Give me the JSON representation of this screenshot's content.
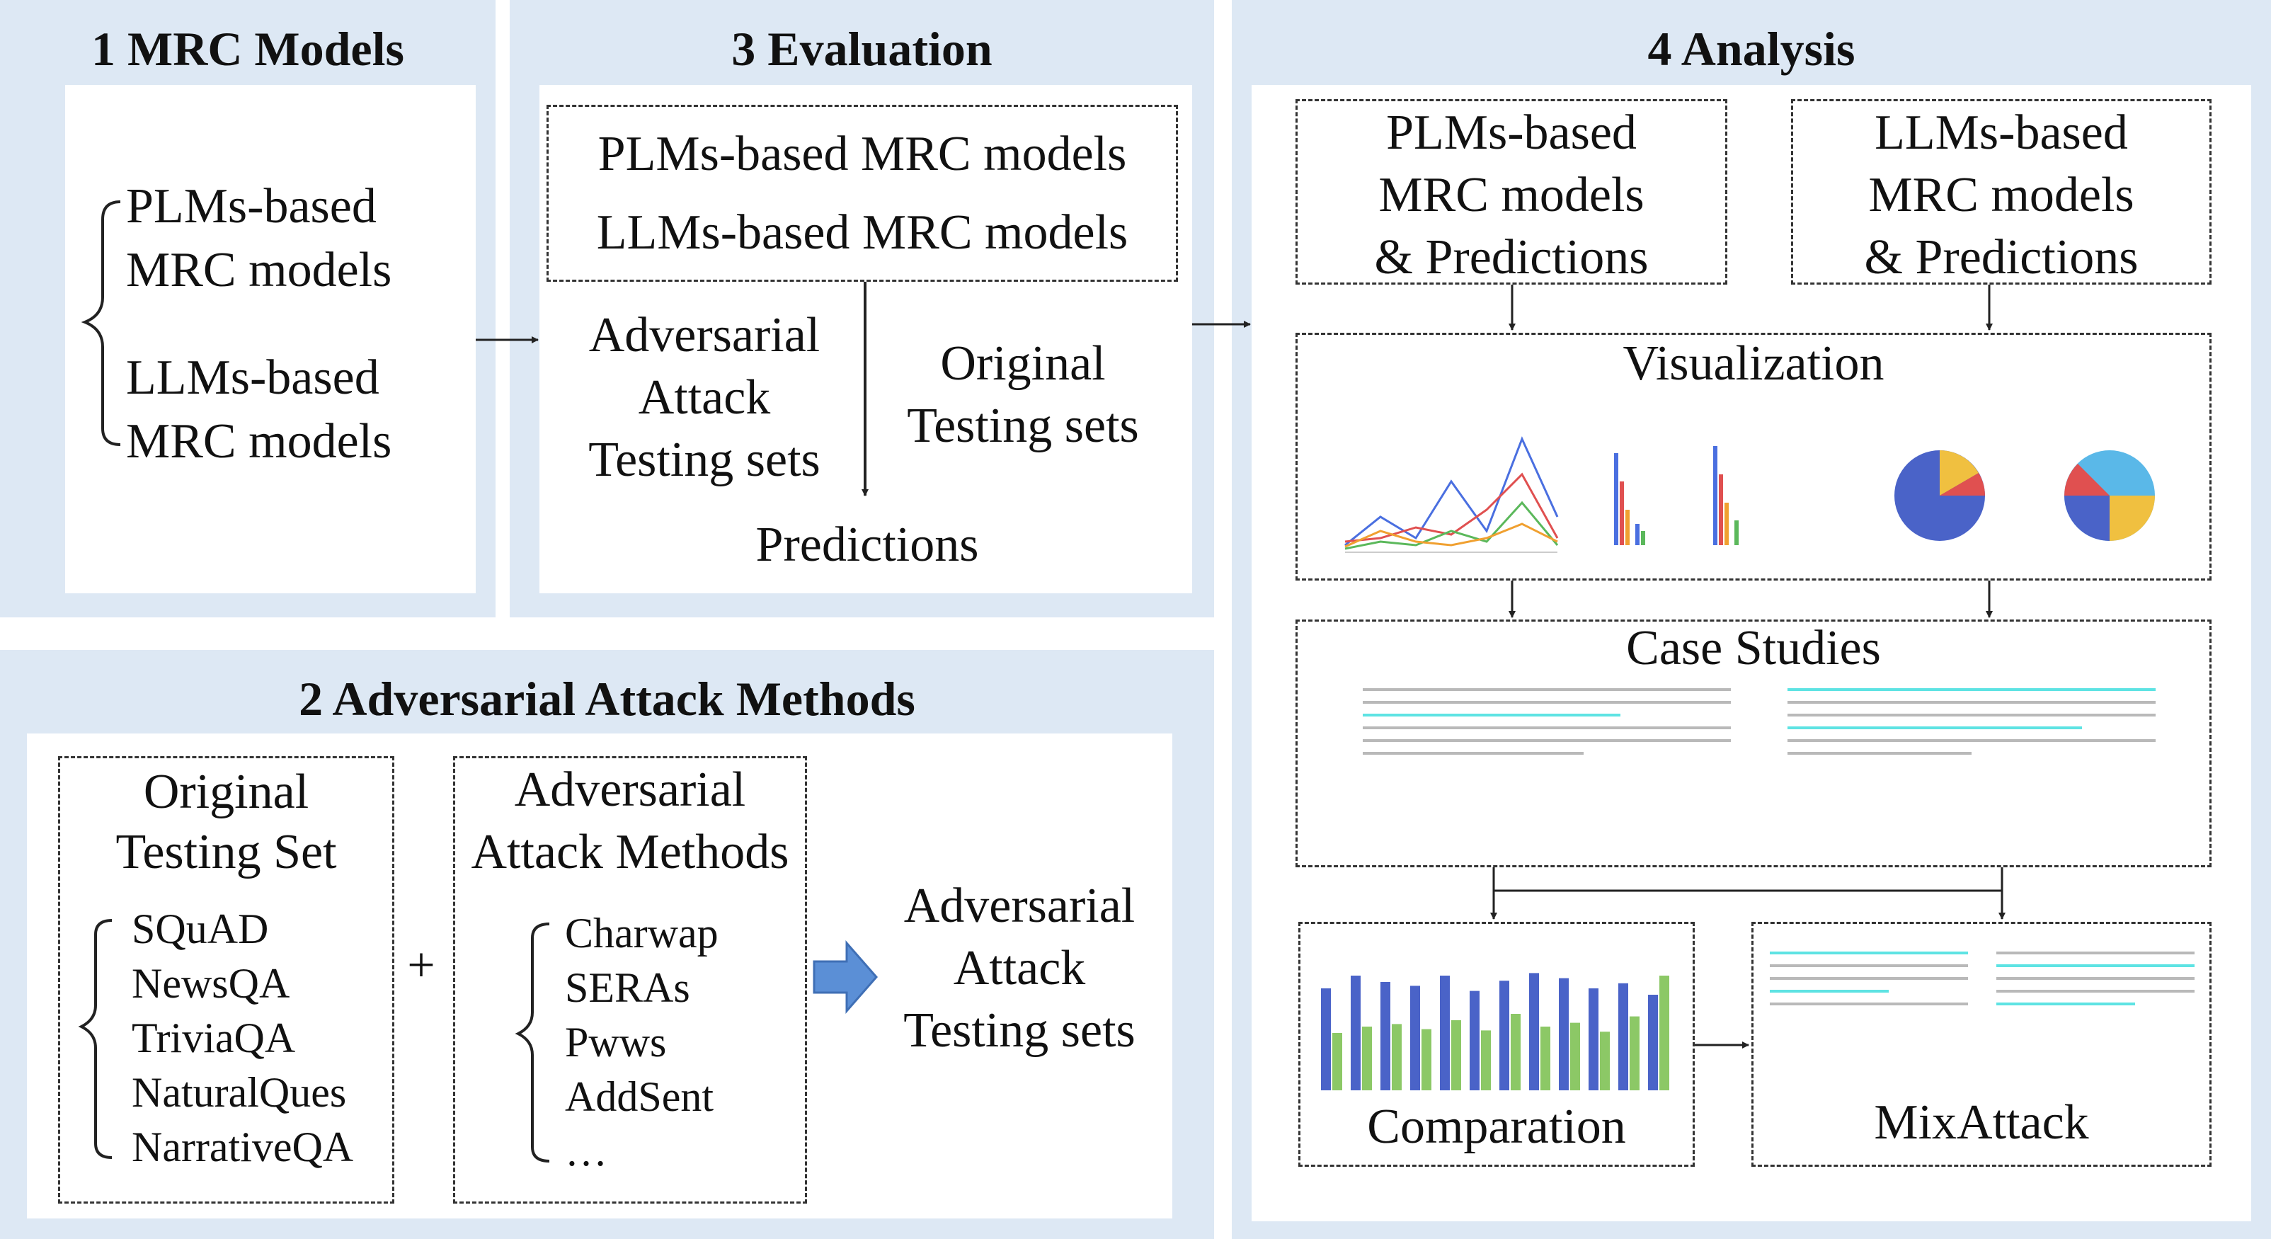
{
  "panel1": {
    "title": "1 MRC Models",
    "item1_l1": "PLMs-based",
    "item1_l2": "MRC models",
    "item2_l1": "LLMs-based",
    "item2_l2": "MRC models"
  },
  "panel3": {
    "title": "3 Evaluation",
    "models_l1": "PLMs-based MRC models",
    "models_l2": "LLMs-based MRC models",
    "adv_l1": "Adversarial",
    "adv_l2": "Attack",
    "adv_l3": "Testing sets",
    "orig_l1": "Original",
    "orig_l2": "Testing sets",
    "predictions": "Predictions"
  },
  "panel4": {
    "title": "4 Analysis",
    "plm_l1": "PLMs-based",
    "plm_l2": "MRC models",
    "plm_l3": "& Predictions",
    "llm_l1": "LLMs-based",
    "llm_l2": "MRC models",
    "llm_l3": "& Predictions",
    "visualization": "Visualization",
    "case_studies": "Case Studies",
    "comparation": "Comparation",
    "mixattack": "MixAttack"
  },
  "panel2": {
    "title": "2 Adversarial Attack Methods",
    "orig_l1": "Original",
    "orig_l2": "Testing Set",
    "datasets": [
      "SQuAD",
      "NewsQA",
      "TriviaQA",
      "NaturalQues",
      "NarrativeQA"
    ],
    "methods_l1": "Adversarial",
    "methods_l2": "Attack Methods",
    "methods": [
      "Charwap",
      "SERAs",
      "Pwws",
      "AddSent",
      "…"
    ],
    "plus": "+",
    "result_l1": "Adversarial",
    "result_l2": "Attack",
    "result_l3": "Testing sets"
  },
  "colors": {
    "panel_bg": "#dde8f4",
    "arrow_fill": "#5b8fd6",
    "bar_blue": "#4a63c8",
    "bar_green": "#8cc866"
  }
}
